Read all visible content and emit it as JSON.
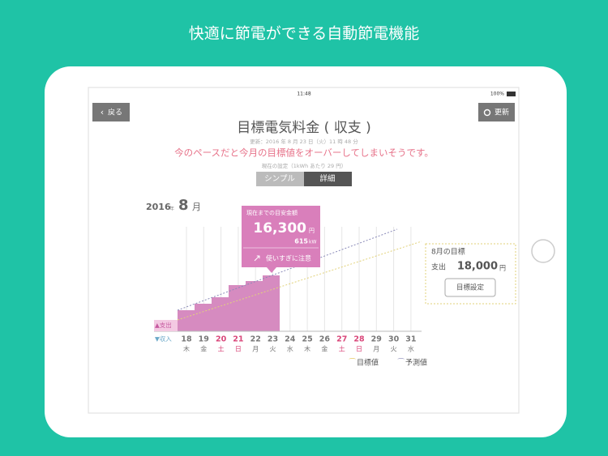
{
  "headline": "快適に節電ができる自動節電機能",
  "status_bar": {
    "time": "11:48",
    "battery": "100%"
  },
  "nav": {
    "back": "戻る",
    "refresh": "更新"
  },
  "header": {
    "title": "目標電気料金 ( 収支 )",
    "updated": "更新：2016 年 8 月 23 日（火）11 時 48 分",
    "warning": "今のペースだと今月の目標値をオーバーしてしまいそうです。",
    "setting": "現在の設定（1kWh あたり 29 円）"
  },
  "tabs": [
    "シンプル",
    "詳細"
  ],
  "period": {
    "year": "2016",
    "year_unit": "年",
    "month": "8",
    "month_unit": "月"
  },
  "tooltip": {
    "label": "現在までの目安金額",
    "amount": "16,300",
    "amount_unit": "円",
    "usage": "615",
    "usage_unit": "kW",
    "warning": "使いすぎに注意"
  },
  "goal": {
    "title": "8月の目標",
    "label": "支出",
    "amount": "18,000",
    "unit": "円",
    "button": "目標設定"
  },
  "axis": {
    "expense": "▲支出",
    "income": "▼収入"
  },
  "days": [
    {
      "day": "18",
      "weekday": "木",
      "color": "#777"
    },
    {
      "day": "19",
      "weekday": "金",
      "color": "#777"
    },
    {
      "day": "20",
      "weekday": "土",
      "color": "#d9477a"
    },
    {
      "day": "21",
      "weekday": "日",
      "color": "#d9477a"
    },
    {
      "day": "22",
      "weekday": "月",
      "color": "#777"
    },
    {
      "day": "23",
      "weekday": "火",
      "color": "#777"
    },
    {
      "day": "24",
      "weekday": "水",
      "color": "#777"
    },
    {
      "day": "25",
      "weekday": "木",
      "color": "#777"
    },
    {
      "day": "26",
      "weekday": "金",
      "color": "#777"
    },
    {
      "day": "27",
      "weekday": "土",
      "color": "#d9477a"
    },
    {
      "day": "28",
      "weekday": "日",
      "color": "#d9477a"
    },
    {
      "day": "29",
      "weekday": "月",
      "color": "#777"
    },
    {
      "day": "30",
      "weekday": "火",
      "color": "#777"
    },
    {
      "day": "31",
      "weekday": "水",
      "color": "#777"
    }
  ],
  "legend": [
    "目標値",
    "予測値"
  ]
}
